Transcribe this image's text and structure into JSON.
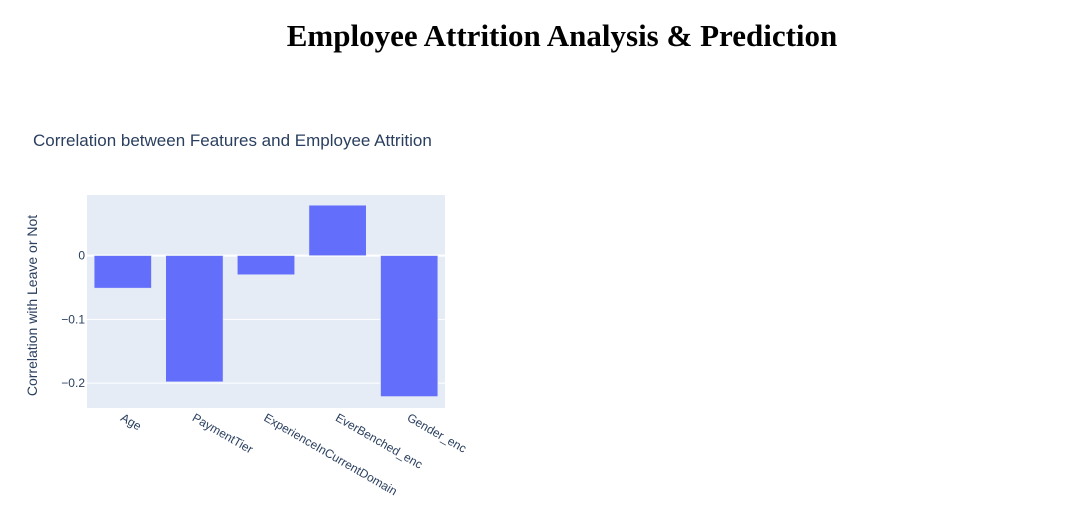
{
  "page": {
    "title": "Employee Attrition Analysis & Prediction"
  },
  "chart_data": {
    "type": "bar",
    "title": "Correlation between Features and Employee Attrition",
    "xlabel": "",
    "ylabel": "Correlation with Leave or Not",
    "categories": [
      "Age",
      "PaymentTier",
      "ExperienceInCurrentDomain",
      "EverBenched_enc",
      "Gender_enc"
    ],
    "values": [
      -0.051,
      -0.198,
      -0.03,
      0.079,
      -0.221
    ],
    "ylim": [
      -0.239,
      0.095
    ],
    "yticks": [
      0,
      -0.1,
      -0.2
    ],
    "ytick_labels": [
      "0",
      "−0.1",
      "−0.2"
    ],
    "grid": true,
    "legend": "none",
    "colors": {
      "bar": "#636efa",
      "plot_bg": "#e5ecf6",
      "grid": "#ffffff",
      "text": "#2a3f5f"
    }
  }
}
